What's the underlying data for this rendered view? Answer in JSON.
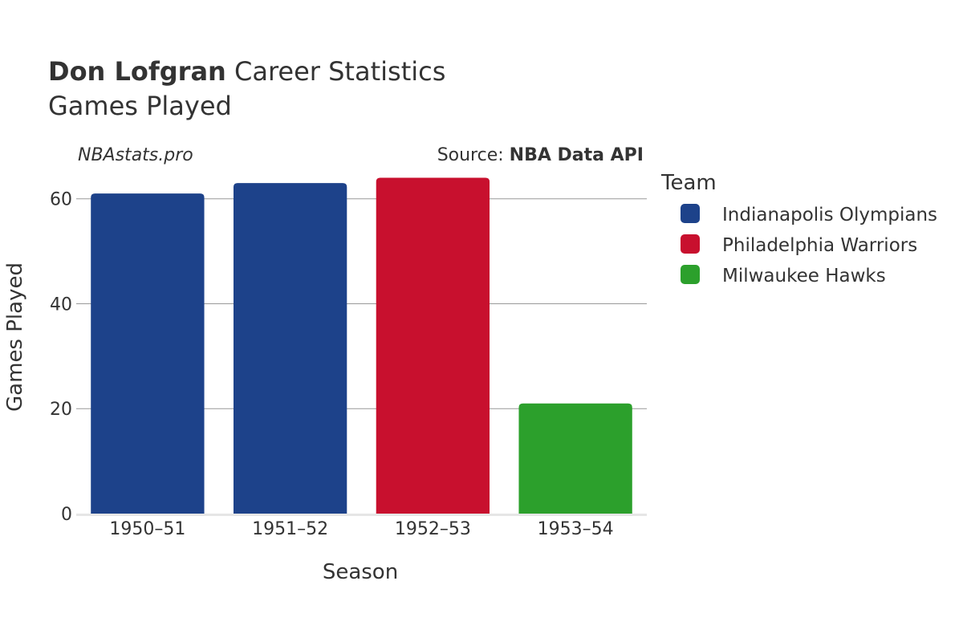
{
  "title": {
    "player": "Don Lofgran",
    "rest": " Career Statistics",
    "subtitle": "Games Played"
  },
  "watermark": "NBAstats.pro",
  "source": {
    "prefix": "Source: ",
    "name": "NBA Data API"
  },
  "legend": {
    "title": "Team",
    "items": [
      {
        "name": "Indianapolis Olympians",
        "color": "#1d428a"
      },
      {
        "name": "Philadelphia Warriors",
        "color": "#c8102e"
      },
      {
        "name": "Milwaukee Hawks",
        "color": "#2ca02c"
      }
    ]
  },
  "chart_data": {
    "type": "bar",
    "xlabel": "Season",
    "ylabel": "Games Played",
    "ylim": [
      0,
      65
    ],
    "yticks": [
      0,
      20,
      40,
      60
    ],
    "grid": true,
    "legend_position": "right",
    "categories": [
      "1950–51",
      "1951–52",
      "1952–53",
      "1953–54"
    ],
    "values": [
      61,
      63,
      64,
      21
    ],
    "teams": [
      "Indianapolis Olympians",
      "Indianapolis Olympians",
      "Philadelphia Warriors",
      "Milwaukee Hawks"
    ]
  }
}
